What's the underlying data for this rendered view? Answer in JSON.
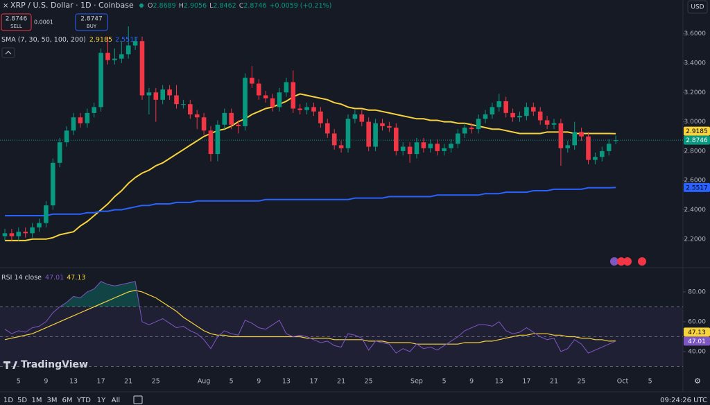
{
  "header": {
    "prefixes": [
      "O",
      "H",
      "L",
      "C"
    ],
    "change": "+0.0059 (+0.21%)",
    "currency": "USD"
  },
  "trade": {
    "sell": "SELL",
    "buy": "BUY",
    "spread": 0.0001,
    "buy_price": 2.8747
  },
  "logo": "TradingView",
  "toolbar": {
    "ranges": [
      "1D",
      "5D",
      "1M",
      "3M",
      "6M",
      "YTD",
      "1Y",
      "All"
    ],
    "clock": "09:24:26 UTC"
  },
  "chart_data": [
    {
      "type": "candlestick",
      "title": "XRP / U.S. Dollar · 1D · Coinbase",
      "indicator": "SMA (7, 30, 50, 100, 200)",
      "up_color": "#089981",
      "down_color": "#f23645",
      "categories": [
        null,
        null,
        "5",
        null,
        null,
        null,
        "9",
        null,
        null,
        null,
        "13",
        null,
        null,
        null,
        "17",
        null,
        null,
        null,
        "21",
        null,
        null,
        null,
        "25",
        null,
        null,
        null,
        null,
        null,
        null,
        "Aug",
        null,
        null,
        null,
        "5",
        null,
        null,
        null,
        "9",
        null,
        null,
        null,
        "13",
        null,
        null,
        null,
        "17",
        null,
        null,
        null,
        "21",
        null,
        null,
        null,
        "25",
        null,
        null,
        null,
        null,
        null,
        null,
        "Sep",
        null,
        null,
        null,
        "5",
        null,
        null,
        null,
        "9",
        null,
        null,
        null,
        "13",
        null,
        null,
        null,
        "17",
        null,
        null,
        null,
        "21",
        null,
        null,
        null,
        "25",
        null,
        null,
        null,
        null,
        null,
        "Oct",
        null,
        null,
        null,
        "5"
      ],
      "open": [
        2.22,
        2.24,
        2.22,
        2.25,
        2.24,
        2.28,
        2.31,
        2.43,
        2.72,
        2.86,
        2.94,
        3.03,
        2.99,
        3.06,
        3.1,
        3.47,
        3.42,
        3.43,
        3.46,
        3.52,
        3.55,
        3.18,
        3.2,
        3.15,
        3.22,
        3.18,
        3.12,
        3.12,
        3.05,
        3.03,
        2.94,
        2.78,
        2.98,
        3.06,
        2.98,
        2.97,
        3.3,
        3.26,
        3.18,
        3.16,
        3.1,
        3.2,
        3.27,
        3.09,
        3.08,
        3.1,
        3.07,
        2.99,
        2.92,
        2.84,
        2.82,
        3.02,
        3.05,
        3.0,
        2.83,
        2.99,
        2.97,
        2.96,
        2.8,
        2.83,
        2.78,
        2.86,
        2.82,
        2.85,
        2.8,
        2.82,
        2.85,
        2.92,
        2.96,
        2.95,
        3.02,
        3.05,
        3.1,
        3.14,
        3.06,
        3.03,
        3.04,
        3.1,
        3.07,
        3.01,
        2.98,
        2.99,
        2.82,
        2.84,
        2.93,
        2.9,
        2.74,
        2.76,
        2.8,
        2.8689,
        null,
        null,
        null,
        null,
        null
      ],
      "high": [
        2.27,
        2.27,
        2.28,
        2.28,
        2.31,
        2.34,
        2.46,
        2.75,
        2.89,
        2.97,
        3.06,
        3.06,
        3.09,
        3.13,
        3.5,
        3.58,
        3.5,
        3.55,
        3.65,
        3.58,
        3.58,
        3.23,
        3.23,
        3.25,
        3.25,
        3.25,
        3.15,
        3.15,
        3.08,
        3.06,
        2.97,
        3.01,
        3.09,
        3.09,
        3.01,
        3.33,
        3.38,
        3.29,
        3.21,
        3.19,
        3.23,
        3.3,
        3.35,
        3.12,
        3.13,
        3.13,
        3.1,
        3.02,
        2.95,
        2.87,
        3.05,
        3.08,
        3.08,
        3.03,
        3.02,
        3.02,
        3.0,
        2.99,
        2.86,
        2.86,
        2.89,
        2.89,
        2.88,
        2.88,
        2.85,
        2.88,
        2.95,
        2.99,
        2.99,
        3.05,
        3.08,
        3.13,
        3.19,
        3.17,
        3.09,
        3.07,
        3.13,
        3.13,
        3.1,
        3.04,
        3.02,
        3.02,
        2.87,
        3.0,
        2.96,
        2.93,
        2.79,
        2.83,
        2.88,
        2.9056,
        null,
        null,
        null,
        null,
        null
      ],
      "low": [
        2.19,
        2.19,
        2.19,
        2.21,
        2.21,
        2.25,
        2.28,
        2.4,
        2.69,
        2.83,
        2.91,
        2.96,
        2.96,
        3.03,
        3.07,
        3.39,
        3.39,
        3.4,
        3.43,
        3.49,
        3.15,
        3.05,
        3.0,
        3.12,
        3.15,
        3.09,
        3.09,
        3.02,
        2.95,
        2.91,
        2.73,
        2.73,
        2.95,
        2.95,
        2.92,
        2.94,
        3.23,
        3.15,
        3.13,
        3.07,
        3.07,
        3.17,
        3.06,
        3.05,
        3.05,
        3.04,
        2.96,
        2.89,
        2.81,
        2.79,
        2.79,
        2.99,
        2.97,
        2.8,
        2.8,
        2.94,
        2.93,
        2.77,
        2.77,
        2.72,
        2.75,
        2.79,
        2.79,
        2.77,
        2.77,
        2.79,
        2.82,
        2.89,
        2.92,
        2.92,
        2.99,
        3.02,
        3.07,
        3.03,
        3.0,
        3.0,
        3.01,
        3.04,
        2.98,
        2.95,
        2.95,
        2.7,
        2.79,
        2.81,
        2.87,
        2.71,
        2.71,
        2.73,
        2.77,
        2.8462,
        null,
        null,
        null,
        null,
        null
      ],
      "close": [
        2.24,
        2.22,
        2.25,
        2.24,
        2.28,
        2.31,
        2.43,
        2.72,
        2.86,
        2.94,
        3.03,
        2.99,
        3.06,
        3.1,
        3.47,
        3.42,
        3.43,
        3.46,
        3.52,
        3.55,
        3.18,
        3.2,
        3.15,
        3.22,
        3.18,
        3.12,
        3.12,
        3.05,
        3.03,
        2.94,
        2.78,
        2.98,
        3.06,
        2.98,
        2.97,
        3.3,
        3.26,
        3.18,
        3.16,
        3.1,
        3.2,
        3.27,
        3.09,
        3.08,
        3.1,
        3.07,
        2.99,
        2.92,
        2.84,
        2.82,
        3.02,
        3.05,
        3.0,
        2.83,
        2.99,
        2.97,
        2.96,
        2.8,
        2.83,
        2.78,
        2.86,
        2.82,
        2.85,
        2.8,
        2.82,
        2.85,
        2.92,
        2.96,
        2.95,
        3.02,
        3.05,
        3.1,
        3.14,
        3.06,
        3.03,
        3.04,
        3.1,
        3.07,
        3.01,
        2.98,
        2.99,
        2.82,
        2.84,
        2.93,
        2.9,
        2.74,
        2.76,
        2.8,
        2.85,
        2.8746,
        null,
        null,
        null,
        null,
        null
      ],
      "series": [
        {
          "color": "#f7d33d",
          "values": [
            2.19,
            2.19,
            2.19,
            2.19,
            2.2,
            2.2,
            2.2,
            2.21,
            2.23,
            2.24,
            2.25,
            2.29,
            2.32,
            2.36,
            2.4,
            2.44,
            2.49,
            2.53,
            2.58,
            2.62,
            2.65,
            2.67,
            2.7,
            2.72,
            2.75,
            2.78,
            2.81,
            2.84,
            2.87,
            2.9,
            2.92,
            2.94,
            2.95,
            2.97,
            3.0,
            3.02,
            3.05,
            3.07,
            3.09,
            3.1,
            3.12,
            3.14,
            3.17,
            3.19,
            3.18,
            3.17,
            3.16,
            3.15,
            3.13,
            3.12,
            3.1,
            3.09,
            3.09,
            3.08,
            3.08,
            3.07,
            3.06,
            3.05,
            3.04,
            3.03,
            3.02,
            3.02,
            3.01,
            3.01,
            3.0,
            3.0,
            2.99,
            2.99,
            2.98,
            2.97,
            2.96,
            2.95,
            2.95,
            2.94,
            2.93,
            2.92,
            2.92,
            2.92,
            2.92,
            2.93,
            2.93,
            2.93,
            2.93,
            2.92,
            2.92,
            2.92,
            2.92,
            2.92,
            2.92,
            2.9185,
            null,
            null,
            null,
            null,
            null
          ]
        },
        {
          "color": "#2962ff",
          "values": [
            2.36,
            2.36,
            2.36,
            2.36,
            2.36,
            2.36,
            2.36,
            2.37,
            2.37,
            2.37,
            2.37,
            2.37,
            2.38,
            2.38,
            2.39,
            2.39,
            2.4,
            2.4,
            2.41,
            2.42,
            2.43,
            2.43,
            2.44,
            2.44,
            2.44,
            2.45,
            2.45,
            2.45,
            2.46,
            2.46,
            2.46,
            2.46,
            2.46,
            2.46,
            2.46,
            2.46,
            2.46,
            2.46,
            2.47,
            2.47,
            2.47,
            2.47,
            2.47,
            2.47,
            2.47,
            2.47,
            2.47,
            2.47,
            2.47,
            2.47,
            2.47,
            2.48,
            2.48,
            2.48,
            2.48,
            2.48,
            2.49,
            2.49,
            2.49,
            2.49,
            2.49,
            2.49,
            2.49,
            2.5,
            2.5,
            2.5,
            2.5,
            2.5,
            2.5,
            2.5,
            2.51,
            2.51,
            2.51,
            2.52,
            2.52,
            2.52,
            2.52,
            2.53,
            2.53,
            2.53,
            2.54,
            2.54,
            2.54,
            2.54,
            2.54,
            2.55,
            2.55,
            2.55,
            2.55,
            2.5517,
            null,
            null,
            null,
            null,
            null
          ]
        }
      ],
      "ylim": [
        2.01,
        3.83
      ],
      "yticks": [
        {
          "value": 3.6,
          "label": "3.6000"
        },
        {
          "value": 3.4,
          "label": "3.4000"
        },
        {
          "value": 3.2,
          "label": "3.2000"
        },
        {
          "value": 3.0,
          "label": "3.0000"
        },
        {
          "value": 2.8,
          "label": "2.8000"
        },
        {
          "value": 2.6,
          "label": "2.6000"
        },
        {
          "value": 2.4,
          "label": "2.4000"
        },
        {
          "value": 2.2,
          "label": "2.2000"
        }
      ]
    },
    {
      "type": "line",
      "title": "RSI 14 close",
      "series": [
        {
          "color": "#7e57c2",
          "values": [
            55,
            52,
            54,
            53,
            56,
            57,
            60,
            66,
            70,
            73,
            77,
            76,
            80,
            82,
            87,
            85,
            84,
            85,
            86,
            87,
            60,
            58,
            60,
            62,
            59,
            56,
            57,
            54,
            52,
            48,
            42,
            50,
            54,
            52,
            51,
            61,
            59,
            56,
            55,
            58,
            61,
            52,
            50,
            51,
            50,
            48,
            46,
            47,
            44,
            43,
            52,
            51,
            49,
            41,
            47,
            46,
            45,
            39,
            42,
            40,
            45,
            42,
            43,
            41,
            44,
            47,
            50,
            54,
            56,
            58,
            58,
            57,
            60,
            54,
            52,
            53,
            56,
            53,
            50,
            48,
            49,
            40,
            42,
            48,
            45,
            39,
            41,
            43,
            45,
            47.01,
            null,
            null,
            null,
            null,
            null
          ]
        },
        {
          "color": "#f7d33d",
          "values": [
            48,
            49,
            50,
            51,
            52,
            54,
            56,
            58,
            60,
            62,
            64,
            66,
            68,
            70,
            72,
            74,
            76,
            78,
            80,
            81,
            80,
            78,
            76,
            73,
            70,
            67,
            63,
            60,
            57,
            54,
            52,
            51,
            51,
            50,
            50,
            50,
            50,
            50,
            50,
            50,
            50,
            50,
            50,
            50,
            49,
            49,
            49,
            49,
            48,
            48,
            48,
            48,
            48,
            47,
            47,
            47,
            46,
            46,
            46,
            46,
            45,
            45,
            45,
            45,
            45,
            45,
            45,
            46,
            46,
            46,
            47,
            47,
            48,
            49,
            50,
            51,
            51,
            52,
            52,
            52,
            51,
            51,
            50,
            50,
            49,
            49,
            48,
            48,
            47,
            47.13,
            null,
            null,
            null,
            null,
            null
          ]
        }
      ],
      "levels": [
        70,
        50,
        30
      ],
      "ylim": [
        29.3,
        95.3
      ],
      "yticks": [
        {
          "value": 80,
          "label": "80.00"
        },
        {
          "value": 60,
          "label": "60.00"
        },
        {
          "value": 40,
          "label": "40.00"
        }
      ]
    }
  ]
}
